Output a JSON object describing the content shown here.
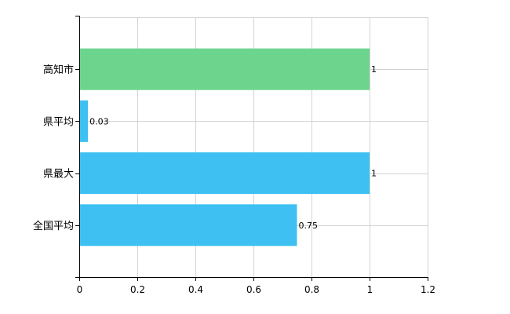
{
  "chart_data": {
    "type": "bar",
    "orientation": "horizontal",
    "categories": [
      "高知市",
      "県平均",
      "県最大",
      "全国平均"
    ],
    "values": [
      1,
      0.03,
      1,
      0.75
    ],
    "data_labels": [
      "1",
      "0.03",
      "1",
      "0.75"
    ],
    "bar_colors": [
      "#6dd48e",
      "#3ec0f2",
      "#3ec0f2",
      "#3ec0f2"
    ],
    "xlim": [
      0,
      1.2
    ],
    "x_ticks": [
      0,
      0.2,
      0.4,
      0.6,
      0.8,
      1,
      1.2
    ],
    "x_tick_labels": [
      "0",
      "0.2",
      "0.4",
      "0.6",
      "0.8",
      "1",
      "1.2"
    ],
    "grid": true,
    "title": "",
    "xlabel": "",
    "ylabel": ""
  }
}
